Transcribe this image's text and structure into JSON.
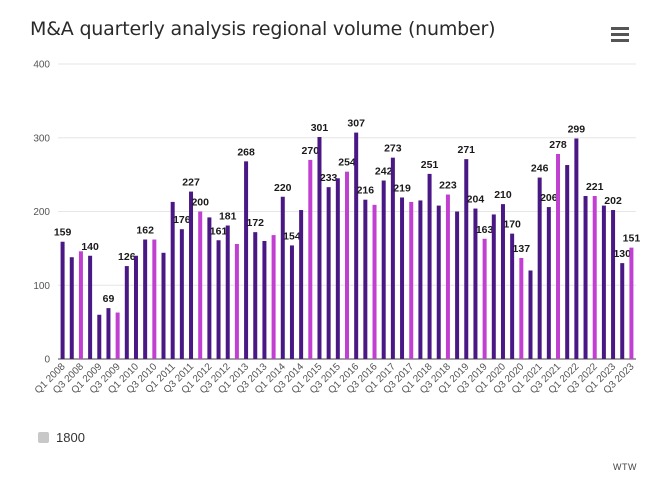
{
  "header": {
    "title": "M&A quarterly analysis regional volume (number)",
    "menu_icon": "hamburger-menu-icon"
  },
  "legend": {
    "label": "1800",
    "color": "#c8c8c8"
  },
  "credit": "WTW",
  "colors": {
    "dark": "#4a1885",
    "magenta": "#c13fd1",
    "grid": "#e6e6e6",
    "axis": "#444444"
  },
  "chart_data": {
    "type": "bar",
    "title": "M&A quarterly analysis regional volume (number)",
    "xlabel": "",
    "ylabel": "",
    "ylim": [
      0,
      400
    ],
    "yticks": [
      0,
      100,
      200,
      300,
      400
    ],
    "grid": true,
    "legend_position": "bottom-left",
    "categories": [
      "Q1 2008",
      "Q2 2008",
      "Q3 2008",
      "Q4 2008",
      "Q1 2009",
      "Q2 2009",
      "Q3 2009",
      "Q4 2009",
      "Q1 2010",
      "Q2 2010",
      "Q3 2010",
      "Q4 2010",
      "Q1 2011",
      "Q2 2011",
      "Q3 2011",
      "Q4 2011",
      "Q1 2012",
      "Q2 2012",
      "Q3 2012",
      "Q4 2012",
      "Q1 2013",
      "Q2 2013",
      "Q3 2013",
      "Q4 2013",
      "Q1 2014",
      "Q2 2014",
      "Q3 2014",
      "Q4 2014",
      "Q1 2015",
      "Q2 2015",
      "Q3 2015",
      "Q4 2015",
      "Q1 2016",
      "Q2 2016",
      "Q3 2016",
      "Q4 2016",
      "Q1 2017",
      "Q2 2017",
      "Q3 2017",
      "Q4 2017",
      "Q1 2018",
      "Q2 2018",
      "Q3 2018",
      "Q4 2018",
      "Q1 2019",
      "Q2 2019",
      "Q3 2019",
      "Q4 2019",
      "Q1 2020",
      "Q2 2020",
      "Q3 2020",
      "Q4 2020",
      "Q1 2021",
      "Q2 2021",
      "Q3 2021",
      "Q4 2021",
      "Q1 2022",
      "Q2 2022",
      "Q3 2022",
      "Q4 2022",
      "Q1 2023",
      "Q2 2023",
      "Q3 2023"
    ],
    "values": [
      159,
      138,
      146,
      140,
      60,
      69,
      63,
      126,
      140,
      162,
      162,
      144,
      213,
      176,
      227,
      200,
      192,
      161,
      181,
      156,
      268,
      172,
      160,
      168,
      220,
      154,
      202,
      270,
      301,
      233,
      245,
      254,
      307,
      216,
      209,
      242,
      273,
      219,
      213,
      215,
      251,
      208,
      223,
      200,
      271,
      204,
      163,
      196,
      210,
      170,
      137,
      120,
      246,
      206,
      278,
      263,
      299,
      221,
      221,
      208,
      202,
      130,
      151
    ],
    "highlight": [
      false,
      false,
      true,
      false,
      false,
      false,
      true,
      false,
      false,
      false,
      true,
      false,
      false,
      false,
      false,
      true,
      false,
      false,
      false,
      true,
      false,
      false,
      false,
      true,
      false,
      false,
      false,
      true,
      false,
      false,
      false,
      true,
      false,
      false,
      true,
      false,
      false,
      false,
      true,
      false,
      false,
      false,
      true,
      false,
      false,
      false,
      true,
      false,
      false,
      false,
      true,
      false,
      false,
      false,
      true,
      false,
      false,
      false,
      true,
      false,
      false,
      false,
      true
    ],
    "data_labels": {
      "0": "159",
      "3": "140",
      "5": "69",
      "7": "126",
      "9": "162",
      "13": "176",
      "14": "227",
      "15": "200",
      "17": "161",
      "18": "181",
      "20": "268",
      "21": "172",
      "24": "220",
      "25": "154",
      "27": "270",
      "28": "301",
      "29": "233",
      "31": "254",
      "32": "307",
      "33": "216",
      "35": "242",
      "36": "273",
      "37": "219",
      "40": "251",
      "42": "223",
      "44": "271",
      "45": "204",
      "46": "163",
      "48": "210",
      "49": "170",
      "50": "137",
      "52": "246",
      "53": "206",
      "54": "278",
      "56": "299",
      "58": "221",
      "60": "202",
      "61": "130",
      "62": "151"
    },
    "xtick_labels": [
      "Q1 2008",
      "Q3 2008",
      "Q1 2009",
      "Q3 2009",
      "Q1 2010",
      "Q3 2010",
      "Q1 2011",
      "Q3 2011",
      "Q1 2012",
      "Q3 2012",
      "Q1 2013",
      "Q3 2013",
      "Q1 2014",
      "Q3 2014",
      "Q1 2015",
      "Q3 2015",
      "Q1 2016",
      "Q3 2016",
      "Q1 2017",
      "Q3 2017",
      "Q1 2018",
      "Q3 2018",
      "Q1 2019",
      "Q3 2019",
      "Q1 2020",
      "Q3 2020",
      "Q1 2021",
      "Q3 2021",
      "Q1 2022",
      "Q3 2022",
      "Q1 2023",
      "Q3 2023"
    ]
  }
}
